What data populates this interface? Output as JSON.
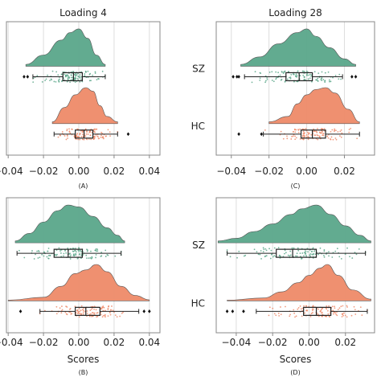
{
  "colors": {
    "sz": "#5aa78a",
    "hc": "#ee8a68",
    "grid": "#dddddd",
    "frame": "#888888",
    "box": "#222222"
  },
  "chart_data": [
    {
      "id": "A",
      "type": "raincloud",
      "title": "Loading 4",
      "caption": "(A)",
      "xlabel": "",
      "xlim": [
        -0.041,
        0.046
      ],
      "xticks": [
        -0.04,
        -0.02,
        0.0,
        0.02,
        0.04
      ],
      "xtick_labels": [
        "−0.04",
        "−0.02",
        "0.00",
        "0.02",
        "0.04"
      ],
      "show_xtick_labels": true,
      "categories": [
        "SZ",
        "HC"
      ],
      "show_category_labels": false,
      "grid": true,
      "series": [
        {
          "name": "SZ",
          "density_x": [
            -0.03,
            -0.02,
            -0.01,
            -0.005,
            0.0,
            0.005,
            0.01,
            0.015
          ],
          "density_y": [
            0.05,
            0.3,
            0.7,
            0.9,
            1.0,
            0.75,
            0.3,
            0.05
          ],
          "box": {
            "whisker_low": -0.026,
            "q1": -0.009,
            "median": -0.003,
            "q3": 0.002,
            "whisker_high": 0.015
          },
          "outliers": [
            -0.031,
            -0.029
          ],
          "points": 120
        },
        {
          "name": "HC",
          "density_x": [
            -0.015,
            -0.008,
            -0.002,
            0.004,
            0.008,
            0.012,
            0.016,
            0.022
          ],
          "density_y": [
            0.05,
            0.45,
            0.8,
            1.0,
            0.9,
            0.5,
            0.2,
            0.05
          ],
          "box": {
            "whisker_low": -0.014,
            "q1": -0.002,
            "median": 0.003,
            "q3": 0.008,
            "whisker_high": 0.022
          },
          "outliers": [
            0.028
          ],
          "points": 120
        }
      ]
    },
    {
      "id": "C",
      "type": "raincloud",
      "title": "Loading 28",
      "caption": "(C)",
      "xlabel": "",
      "xlim": [
        -0.048,
        0.036
      ],
      "xticks": [
        -0.04,
        -0.02,
        0.0,
        0.02
      ],
      "xtick_labels": [
        "−0.04",
        "−0.02",
        "0.00",
        "0.02"
      ],
      "show_xtick_labels": true,
      "categories": [
        "SZ",
        "HC"
      ],
      "show_category_labels": true,
      "grid": true,
      "series": [
        {
          "name": "SZ",
          "density_x": [
            -0.035,
            -0.025,
            -0.015,
            -0.005,
            0.0,
            0.005,
            0.012,
            0.02,
            0.026
          ],
          "density_y": [
            0.05,
            0.25,
            0.6,
            0.9,
            1.0,
            0.8,
            0.5,
            0.2,
            0.05
          ],
          "box": {
            "whisker_low": -0.033,
            "q1": -0.011,
            "median": -0.004,
            "q3": 0.003,
            "whisker_high": 0.019
          },
          "outliers": [
            -0.039,
            -0.037,
            -0.036,
            0.024,
            0.026
          ],
          "points": 120
        },
        {
          "name": "HC",
          "density_x": [
            -0.02,
            -0.01,
            -0.005,
            0.0,
            0.005,
            0.01,
            0.015,
            0.022,
            0.028
          ],
          "density_y": [
            0.05,
            0.2,
            0.55,
            0.8,
            0.95,
            1.0,
            0.85,
            0.4,
            0.05
          ],
          "box": {
            "whisker_low": -0.023,
            "q1": -0.003,
            "median": 0.003,
            "q3": 0.01,
            "whisker_high": 0.028
          },
          "outliers": [
            -0.036,
            -0.024
          ],
          "points": 120
        }
      ]
    },
    {
      "id": "B",
      "type": "raincloud",
      "title": "",
      "caption": "(B)",
      "xlabel": "Scores",
      "xlim": [
        -0.041,
        0.046
      ],
      "xticks": [
        -0.04,
        -0.02,
        0.0,
        0.02,
        0.04
      ],
      "xtick_labels": [
        "−0.04",
        "−0.02",
        "0.00",
        "0.02",
        "0.04"
      ],
      "show_xtick_labels": true,
      "categories": [
        "SZ",
        "HC"
      ],
      "show_category_labels": false,
      "grid": true,
      "series": [
        {
          "name": "SZ",
          "density_x": [
            -0.036,
            -0.028,
            -0.02,
            -0.012,
            -0.006,
            0.0,
            0.008,
            0.016,
            0.022,
            0.026
          ],
          "density_y": [
            0.05,
            0.25,
            0.55,
            0.85,
            1.0,
            0.95,
            0.7,
            0.4,
            0.2,
            0.05
          ],
          "box": {
            "whisker_low": -0.035,
            "q1": -0.014,
            "median": -0.006,
            "q3": 0.002,
            "whisker_high": 0.024
          },
          "outliers": [],
          "points": 120
        },
        {
          "name": "HC",
          "density_x": [
            -0.04,
            -0.02,
            -0.01,
            -0.002,
            0.004,
            0.01,
            0.016,
            0.024,
            0.032,
            0.04
          ],
          "density_y": [
            0.02,
            0.1,
            0.4,
            0.75,
            0.85,
            1.0,
            0.8,
            0.4,
            0.15,
            0.03
          ],
          "box": {
            "whisker_low": -0.022,
            "q1": -0.002,
            "median": 0.004,
            "q3": 0.012,
            "whisker_high": 0.034
          },
          "outliers": [
            -0.033,
            0.037,
            0.04
          ],
          "points": 120
        }
      ]
    },
    {
      "id": "D",
      "type": "raincloud",
      "title": "",
      "caption": "(D)",
      "xlabel": "Scores",
      "xlim": [
        -0.051,
        0.036
      ],
      "xticks": [
        -0.04,
        -0.02,
        0.0,
        0.02
      ],
      "xtick_labels": [
        "−0.04",
        "−0.02",
        "0.00",
        "0.02"
      ],
      "show_xtick_labels": true,
      "categories": [
        "SZ",
        "HC"
      ],
      "show_category_labels": true,
      "grid": true,
      "series": [
        {
          "name": "SZ",
          "density_x": [
            -0.05,
            -0.04,
            -0.03,
            -0.02,
            -0.01,
            -0.004,
            0.004,
            0.012,
            0.02,
            0.028,
            0.034
          ],
          "density_y": [
            0.05,
            0.12,
            0.3,
            0.5,
            0.75,
            0.9,
            1.0,
            0.75,
            0.45,
            0.2,
            0.05
          ],
          "box": {
            "whisker_low": -0.045,
            "q1": -0.018,
            "median": -0.009,
            "q3": 0.004,
            "whisker_high": 0.031
          },
          "outliers": [],
          "points": 120
        },
        {
          "name": "HC",
          "density_x": [
            -0.045,
            -0.025,
            -0.015,
            -0.006,
            0.0,
            0.006,
            0.01,
            0.016,
            0.024,
            0.034
          ],
          "density_y": [
            0.02,
            0.08,
            0.25,
            0.5,
            0.7,
            0.9,
            1.0,
            0.7,
            0.3,
            0.05
          ],
          "box": {
            "whisker_low": -0.029,
            "q1": -0.003,
            "median": 0.004,
            "q3": 0.012,
            "whisker_high": 0.032
          },
          "outliers": [
            -0.045,
            -0.042,
            -0.036
          ],
          "points": 120
        }
      ]
    }
  ]
}
